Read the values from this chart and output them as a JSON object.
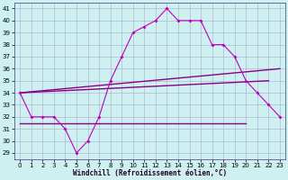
{
  "x_hours": [
    0,
    1,
    2,
    3,
    4,
    5,
    6,
    7,
    8,
    9,
    10,
    11,
    12,
    13,
    14,
    15,
    16,
    17,
    18,
    19,
    20,
    21,
    22,
    23
  ],
  "line1": [
    34,
    32,
    32,
    32,
    31,
    29,
    30,
    32,
    35,
    37,
    39,
    39.5,
    40,
    41,
    40,
    40,
    40,
    38,
    38,
    37,
    35,
    34,
    33,
    32
  ],
  "line2_x": [
    0,
    23
  ],
  "line2_y": [
    34,
    36
  ],
  "line3_x": [
    0,
    22
  ],
  "line3_y": [
    34,
    35
  ],
  "line4_x": [
    0,
    20
  ],
  "line4_y": [
    31.5,
    31.5
  ],
  "ylim": [
    28.5,
    41.5
  ],
  "yticks": [
    29,
    30,
    31,
    32,
    33,
    34,
    35,
    36,
    37,
    38,
    39,
    40,
    41
  ],
  "xticks": [
    0,
    1,
    2,
    3,
    4,
    5,
    6,
    7,
    8,
    9,
    10,
    11,
    12,
    13,
    14,
    15,
    16,
    17,
    18,
    19,
    20,
    21,
    22,
    23
  ],
  "xlabel": "Windchill (Refroidissement éolien,°C)",
  "bg_color": "#cef0f0",
  "grid_color": "#aaaacc",
  "line_color": "#bb00bb",
  "line_color2": "#880088"
}
